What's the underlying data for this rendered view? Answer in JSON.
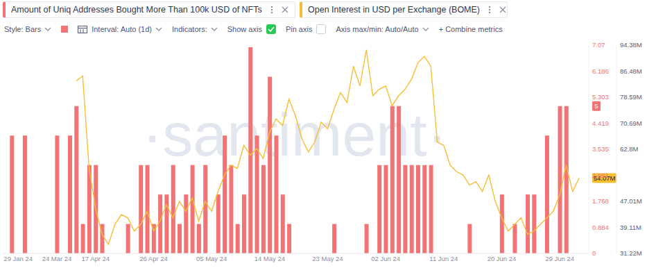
{
  "chart_data": {
    "type": "bar",
    "legend": "top left",
    "grid": false,
    "watermark": "·santiment·",
    "toolbar": [
      "Style: Bars",
      "Interval: Auto (1d)",
      "Indicators:",
      "Show axis",
      "Pin axis",
      "Axis max/min: Auto/Auto",
      "+ Combine metrics"
    ],
    "categories": [
      null,
      null,
      "29 Jan 24",
      null,
      null,
      null,
      null,
      null,
      "24 Mar 24",
      null,
      null,
      null,
      null,
      null,
      "17 Apr 24",
      null,
      null,
      null,
      null,
      null,
      null,
      null,
      null,
      "26 Apr 24",
      null,
      null,
      null,
      null,
      null,
      null,
      null,
      null,
      "05 May 24",
      null,
      null,
      null,
      null,
      null,
      null,
      null,
      null,
      "14 May 24",
      null,
      null,
      null,
      null,
      null,
      null,
      null,
      null,
      "23 May 24",
      null,
      null,
      null,
      null,
      null,
      null,
      null,
      null,
      "02 Jun 24",
      null,
      null,
      null,
      null,
      null,
      null,
      null,
      null,
      "11 Jun 24",
      null,
      null,
      null,
      null,
      null,
      null,
      null,
      null,
      "20 Jun 24",
      null,
      null,
      null,
      null,
      null,
      null,
      null,
      null,
      "29 Jun 24",
      null,
      null,
      null,
      null
    ],
    "series": [
      {
        "name": "Amount of Uniq Addresses Bought More Than 100k USD of NFTs",
        "type": "bar",
        "color": "#f27373",
        "values": [
          0,
          4,
          0,
          4,
          0,
          0,
          0,
          0,
          4,
          0,
          4,
          5,
          1,
          3,
          3,
          1,
          0,
          0,
          0,
          1,
          0,
          3,
          3,
          1,
          2,
          2,
          3,
          1,
          2,
          3,
          1,
          3,
          0,
          2,
          4,
          3,
          1,
          2,
          7,
          4,
          3,
          6,
          4,
          2,
          1,
          0,
          0,
          0,
          0,
          0,
          0,
          1,
          0,
          0,
          0,
          0,
          1,
          0,
          3,
          3,
          5,
          5,
          3,
          3,
          3,
          3,
          3,
          0,
          0,
          0,
          0,
          0,
          1,
          0,
          0,
          0,
          0,
          2,
          0,
          1,
          0,
          2,
          2,
          0,
          4,
          0,
          5,
          5,
          0,
          0,
          0
        ]
      },
      {
        "name": "Open Interest in USD per Exchange (BOME)",
        "type": "line",
        "color": "#f5bf35",
        "axis": "y2",
        "values": [
          null,
          null,
          null,
          null,
          null,
          null,
          null,
          null,
          null,
          null,
          null,
          83500000,
          85000000,
          57000000,
          45000000,
          37000000,
          34000000,
          40000000,
          43000000,
          42000000,
          38000000,
          40000000,
          44000000,
          38000000,
          41000000,
          46000000,
          42000000,
          47000000,
          44000000,
          48000000,
          41000000,
          47000000,
          44000000,
          50000000,
          55000000,
          58000000,
          57000000,
          64000000,
          61000000,
          63000000,
          60000000,
          68000000,
          72000000,
          70000000,
          78000000,
          73000000,
          66000000,
          62000000,
          65000000,
          71000000,
          69000000,
          75000000,
          80000000,
          77000000,
          88000000,
          82000000,
          93000000,
          79000000,
          81000000,
          82000000,
          76000000,
          79000000,
          81000000,
          84000000,
          89000000,
          91000000,
          88000000,
          65000000,
          64000000,
          58000000,
          56000000,
          55000000,
          52000000,
          53000000,
          50000000,
          55000000,
          47000000,
          42000000,
          38000000,
          40000000,
          42000000,
          37000000,
          38000000,
          40000000,
          42000000,
          44000000,
          49000000,
          58000000,
          50000000,
          54070000,
          null
        ]
      }
    ],
    "ylim": [
      0,
      7.07
    ],
    "yticks": [
      0,
      0.884,
      1.768,
      2.651,
      3.535,
      4.419,
      5.303,
      6.186,
      7.07
    ],
    "y2lim": [
      31220000,
      94380000
    ],
    "y2ticks": [
      {
        "value": 31220000,
        "label": "31.22M"
      },
      {
        "value": 39110000,
        "label": "39.11M"
      },
      {
        "value": 47010000,
        "label": "47.01M"
      },
      {
        "value": 62800000,
        "label": "62.8M"
      },
      {
        "value": 70690000,
        "label": "70.69M"
      },
      {
        "value": 78590000,
        "label": "78.59M"
      },
      {
        "value": 86480000,
        "label": "86.48M"
      },
      {
        "value": 94380000,
        "label": "94.38M"
      }
    ],
    "annotations": [
      {
        "text": "5",
        "value": 5,
        "axis": "y"
      },
      {
        "text": "54.07M",
        "value": 54070000,
        "axis": "y2"
      }
    ]
  }
}
